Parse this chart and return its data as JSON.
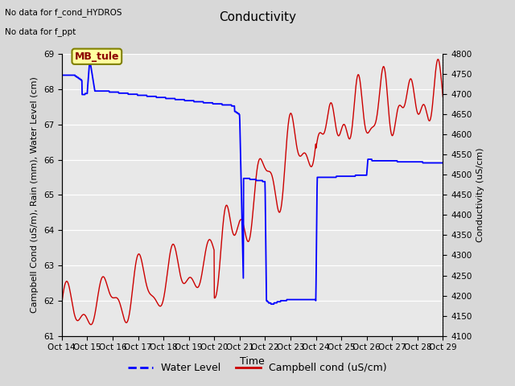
{
  "title": "Conductivity",
  "xlabel": "Time",
  "ylabel_left": "Campbell Cond (uS/m), Rain (mm), Water Level (cm)",
  "ylabel_right": "Conductivity (uS/cm)",
  "text_line1": "No data for f_cond_HYDROS",
  "text_line2": "No data for f_ppt",
  "legend_box_label": "MB_tule",
  "ylim_left": [
    61.0,
    69.0
  ],
  "ylim_right": [
    4100,
    4800
  ],
  "yticks_left": [
    61.0,
    62.0,
    63.0,
    64.0,
    65.0,
    66.0,
    67.0,
    68.0,
    69.0
  ],
  "yticks_right": [
    4100,
    4150,
    4200,
    4250,
    4300,
    4350,
    4400,
    4450,
    4500,
    4550,
    4600,
    4650,
    4700,
    4750,
    4800
  ],
  "xtick_labels": [
    "Oct 14",
    "Oct 15",
    "Oct 16",
    "Oct 17",
    "Oct 18",
    "Oct 19",
    "Oct 20",
    "Oct 21",
    "Oct 22",
    "Oct 23",
    "Oct 24",
    "Oct 25",
    "Oct 26",
    "Oct 27",
    "Oct 28",
    "Oct 29"
  ],
  "n_xticks": 16,
  "bg_color": "#d8d8d8",
  "plot_bg_color": "#e8e8e8",
  "water_level_color": "#0000ff",
  "campbell_cond_color": "#cc0000",
  "legend_entries": [
    "Water Level",
    "Campbell cond (uS/cm)"
  ],
  "title_fontsize": 11,
  "label_fontsize": 8,
  "tick_fontsize": 7.5,
  "legend_fontsize": 9
}
